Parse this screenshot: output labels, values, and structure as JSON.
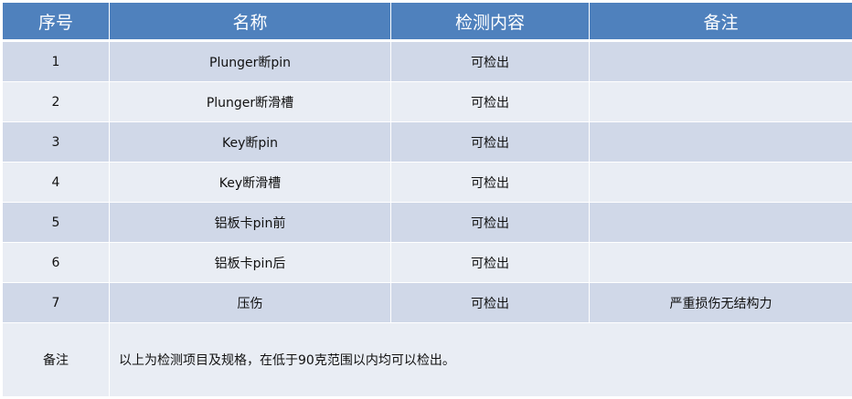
{
  "headers": [
    "序号",
    "名称",
    "检测内容",
    "备注"
  ],
  "rows": [
    {
      "no": "1",
      "name": "Plunger断pin",
      "detect": "可检出",
      "remark": ""
    },
    {
      "no": "2",
      "name": "Plunger断滑槽",
      "detect": "可检出",
      "remark": ""
    },
    {
      "no": "3",
      "name": "Key断pin",
      "detect": "可检出",
      "remark": ""
    },
    {
      "no": "4",
      "name": "Key断滑槽",
      "detect": "可检出",
      "remark": ""
    },
    {
      "no": "5",
      "name": "铝板卡pin前",
      "detect": "可检出",
      "remark": ""
    },
    {
      "no": "6",
      "name": "铝板卡pin后",
      "detect": "可检出",
      "remark": ""
    },
    {
      "no": "7",
      "name": "压伤",
      "detect": "可检出",
      "remark": "严重损伤无结构力"
    }
  ],
  "note": {
    "label": "备注",
    "text": "以上为检测项目及规格，在低于90克范围以内均可以检出。"
  },
  "colors": {
    "header": "#4f81bd",
    "row_odd": "#d0d8e8",
    "row_even": "#e9edf4"
  }
}
